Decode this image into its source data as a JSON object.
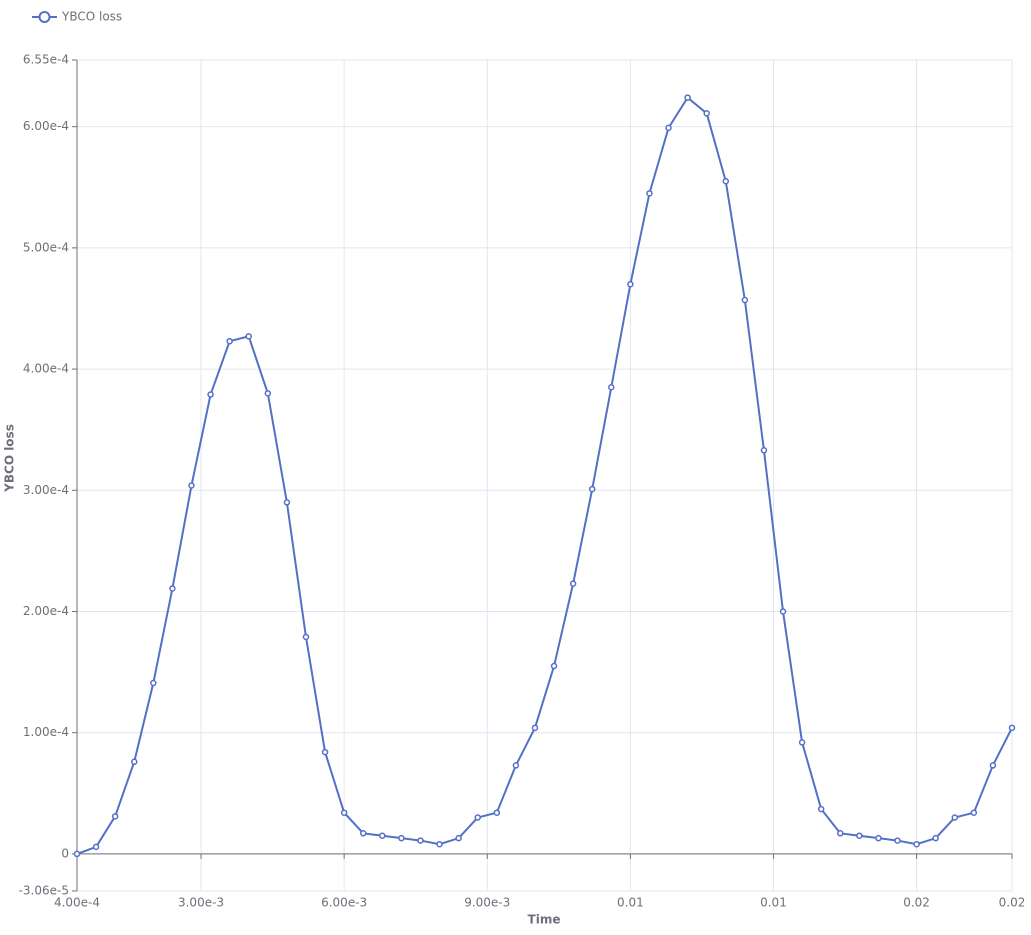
{
  "chart_data": {
    "type": "line",
    "x_label": "Time",
    "y_label": "YBCO loss",
    "x": [
      0.0004,
      0.0008,
      0.0012,
      0.0016,
      0.002,
      0.0024,
      0.0028,
      0.0032,
      0.0036,
      0.004,
      0.0044,
      0.0048,
      0.0052,
      0.0056,
      0.006,
      0.0064,
      0.0068,
      0.0072,
      0.0076,
      0.008,
      0.0084,
      0.0088,
      0.0092,
      0.0096,
      0.01,
      0.0104,
      0.0108,
      0.0112,
      0.0116,
      0.012,
      0.0124,
      0.0128,
      0.0132,
      0.0136,
      0.014,
      0.0144,
      0.0148,
      0.0152,
      0.0156,
      0.016,
      0.0164,
      0.0168,
      0.0172,
      0.0176,
      0.018,
      0.0184,
      0.0188,
      0.0192,
      0.0196,
      0.02
    ],
    "series": [
      {
        "name": "YBCO loss",
        "color": "#5470c6",
        "values": [
          0,
          5.8e-06,
          3.1e-05,
          7.6e-05,
          0.000141,
          0.000219,
          0.000304,
          0.000379,
          0.000423,
          0.000427,
          0.00038,
          0.00029,
          0.000179,
          8.4e-05,
          3.4e-05,
          1.7e-05,
          1.5e-05,
          1.3e-05,
          1.1e-05,
          8e-06,
          1.3e-05,
          3e-05,
          3.4e-05,
          7.3e-05,
          0.000104,
          0.000155,
          0.000223,
          0.000301,
          0.000385,
          0.00047,
          0.000545,
          0.000599,
          0.000624,
          0.000611,
          0.000555,
          0.000457,
          0.000333,
          0.0002,
          9.2e-05,
          3.7e-05,
          1.7e-05,
          1.5e-05,
          1.3e-05,
          1.1e-05,
          8e-06,
          1.3e-05,
          3e-05,
          3.4e-05,
          7.3e-05,
          0.000104
        ]
      }
    ],
    "xlim": [
      0.0004,
      0.02
    ],
    "xticks": [
      {
        "value": 0.0004,
        "label": "4.00e-4"
      },
      {
        "value": 0.003,
        "label": "3.00e-3"
      },
      {
        "value": 0.006,
        "label": "6.00e-3"
      },
      {
        "value": 0.009,
        "label": "9.00e-3"
      },
      {
        "value": 0.012,
        "label": "0.01"
      },
      {
        "value": 0.015,
        "label": "0.01"
      },
      {
        "value": 0.018,
        "label": "0.02"
      },
      0.02
    ],
    "ylim": [
      -3.06e-05,
      0.000655
    ],
    "yticks": [
      {
        "value": -3.06e-05,
        "label": "-3.06e-5"
      },
      0,
      {
        "value": 0.0001,
        "label": "1.00e-4"
      },
      {
        "value": 0.0002,
        "label": "2.00e-4"
      },
      {
        "value": 0.0003,
        "label": "3.00e-4"
      },
      {
        "value": 0.0004,
        "label": "4.00e-4"
      },
      {
        "value": 0.0005,
        "label": "5.00e-4"
      },
      {
        "value": 0.0006,
        "label": "6.00e-4"
      },
      {
        "value": 0.000655,
        "label": "6.55e-4"
      }
    ],
    "grid": true,
    "legend": "top-left"
  }
}
